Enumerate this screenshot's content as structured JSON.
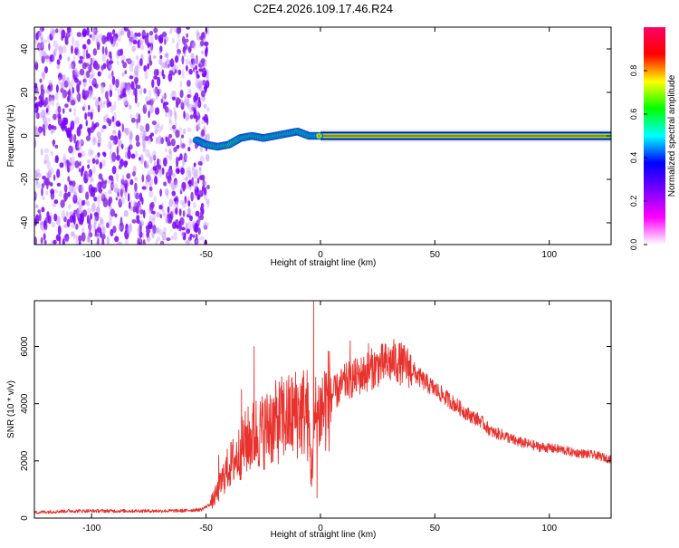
{
  "title": "C2E4.2026.109.17.46.R24",
  "chart_data": [
    {
      "type": "heatmap",
      "xlabel": "Height of straight line (km)",
      "ylabel": "Frequency (Hz)",
      "xlim": [
        -125,
        127
      ],
      "ylim": [
        -50,
        50
      ],
      "x_ticks": [
        -100,
        -50,
        0,
        50,
        100
      ],
      "y_ticks": [
        -40,
        -20,
        0,
        20,
        40
      ],
      "colorbar": {
        "label": "Normalized spectral amplitude",
        "range": [
          0,
          1
        ],
        "ticks": [
          "0.0",
          "0.2",
          "0.4",
          "0.6",
          "0.8"
        ],
        "colors": [
          "#ffffff",
          "#ff00ff",
          "#7a00ff",
          "#0000ff",
          "#00ffff",
          "#00ff00",
          "#ffff00",
          "#ff0000",
          "#ff0066"
        ]
      },
      "noise_region_x": [
        -125,
        -50
      ],
      "signal_start_x": -55,
      "signal_line_frequency": 0,
      "ridge": [
        {
          "x": -54,
          "f": -2
        },
        {
          "x": -50,
          "f": -4
        },
        {
          "x": -45,
          "f": -5
        },
        {
          "x": -40,
          "f": -4
        },
        {
          "x": -35,
          "f": -1
        },
        {
          "x": -30,
          "f": 0
        },
        {
          "x": -25,
          "f": -1
        },
        {
          "x": -20,
          "f": 0
        },
        {
          "x": -15,
          "f": 1
        },
        {
          "x": -10,
          "f": 2
        },
        {
          "x": -5,
          "f": 0
        },
        {
          "x": 0,
          "f": 0
        },
        {
          "x": 127,
          "f": 0
        }
      ]
    },
    {
      "type": "line",
      "xlabel": "Height of straight line (km)",
      "ylabel": "SNR (10 * v/v)",
      "xlim": [
        -125,
        127
      ],
      "ylim": [
        0,
        7600
      ],
      "x_ticks": [
        -100,
        -50,
        0,
        50,
        100
      ],
      "y_ticks": [
        0,
        2000,
        4000,
        6000
      ],
      "color": "#e8322d",
      "series": [
        {
          "x": [
            -125,
            -110,
            -100,
            -90,
            -80,
            -70,
            -60,
            -52,
            -48,
            -45,
            -42,
            -40,
            -38,
            -36,
            -34,
            -32,
            -30,
            -28,
            -26,
            -24,
            -22,
            -20,
            -18,
            -16,
            -14,
            -12,
            -10,
            -8,
            -6,
            -5,
            -4,
            -3,
            -2,
            0,
            2,
            5,
            8,
            10,
            12,
            15,
            18,
            20,
            22,
            25,
            28,
            30,
            32,
            35,
            38,
            40,
            42,
            45,
            50,
            55,
            60,
            65,
            70,
            75,
            80,
            85,
            90,
            95,
            100,
            105,
            110,
            115,
            120,
            127
          ],
          "y": [
            200,
            250,
            250,
            250,
            250,
            250,
            260,
            300,
            500,
            900,
            1500,
            1800,
            2000,
            2200,
            2500,
            2700,
            2800,
            3000,
            3000,
            3100,
            3200,
            3300,
            3400,
            3500,
            3500,
            3600,
            3700,
            3700,
            3800,
            3000,
            1500,
            2800,
            3600,
            3700,
            4000,
            4300,
            4500,
            4700,
            4800,
            4900,
            5000,
            5100,
            5200,
            5300,
            5400,
            5400,
            5500,
            5400,
            5300,
            5200,
            5000,
            4800,
            4500,
            4200,
            3900,
            3600,
            3400,
            3000,
            2900,
            2700,
            2600,
            2500,
            2450,
            2400,
            2300,
            2250,
            2200,
            2050
          ],
          "spikes": [
            {
              "x": -44.5,
              "y": 2200
            },
            {
              "x": -34.5,
              "y": 4500
            },
            {
              "x": -29,
              "y": 6000
            },
            {
              "x": -22,
              "y": 4300
            },
            {
              "x": -18,
              "y": 4600
            },
            {
              "x": -3,
              "y": 7600
            },
            {
              "x": -1.5,
              "y": 700
            },
            {
              "x": 13,
              "y": 6200
            },
            {
              "x": 21,
              "y": 6100
            }
          ]
        }
      ]
    }
  ]
}
